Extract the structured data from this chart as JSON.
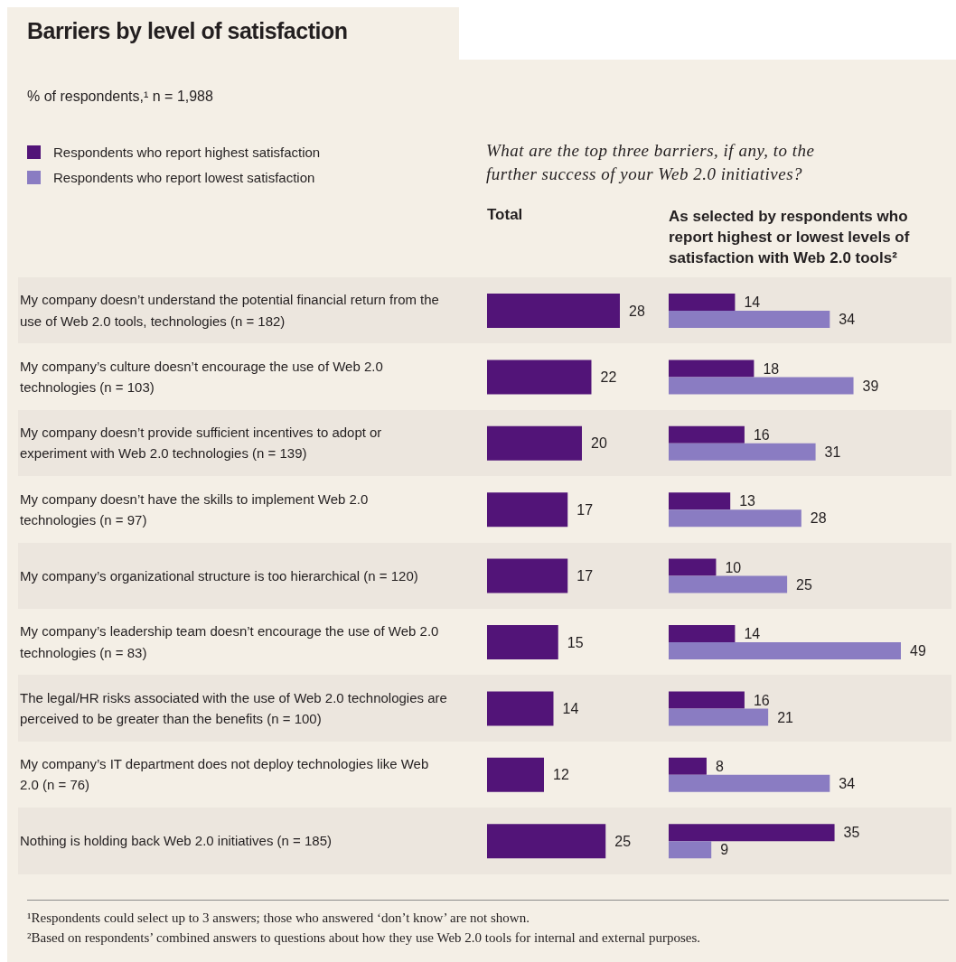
{
  "chart_data": [
    {
      "type": "bar",
      "orientation": "horizontal",
      "title": "Barriers by level of satisfaction",
      "subtitle": "% of respondents,¹ n = 1,988",
      "annotations": [
        "What are the top three barriers, if any, to the further success of your Web 2.0 initiatives?",
        "Total"
      ],
      "categories": [
        "My company doesn’t understand the potential financial return from the use of Web 2.0 tools, technologies (n = 182)",
        "My company’s culture doesn’t encourage the use of Web 2.0 technologies (n = 103)",
        "My company doesn’t provide sufficient incentives to adopt or experiment with Web 2.0 technologies (n = 139)",
        "My company doesn’t have the skills to implement Web 2.0 technologies (n = 97)",
        "My company’s organizational structure is too hierarchical (n = 120)",
        "My company’s leadership team doesn’t encourage the use of Web 2.0 technologies (n = 83)",
        "The legal/HR risks associated with the use of Web 2.0 technologies are perceived to be greater than the benefits (n = 100)",
        "My company’s IT department does not deploy technologies like Web 2.0 (n = 76)",
        "Nothing is holding back Web 2.0 initiatives (n = 185)"
      ],
      "values": [
        28,
        22,
        20,
        17,
        17,
        15,
        14,
        12,
        25
      ],
      "color": "#521478",
      "data_labels": true,
      "tick_labels": "y"
    },
    {
      "type": "bar",
      "orientation": "horizontal",
      "title": "As selected by respondents who report highest or lowest levels of satisfaction with Web 2.0 tools²",
      "categories": [
        null,
        null,
        null,
        null,
        null,
        null,
        null,
        null,
        null
      ],
      "series": [
        {
          "name": "Respondents who report highest satisfaction",
          "color": "#521478",
          "values": [
            14,
            18,
            16,
            13,
            10,
            14,
            16,
            8,
            35
          ]
        },
        {
          "name": "Respondents who report lowest satisfaction",
          "color": "#8a7cc2",
          "values": [
            34,
            39,
            31,
            28,
            25,
            49,
            21,
            34,
            9
          ]
        }
      ],
      "data_labels": true,
      "tick_labels": false,
      "legend": "top left",
      "annotations": [
        "¹Respondents could select up to 3 answers; those who answered ‘don’t know’ are not shown.",
        "²Based on respondents’ combined answers to questions about how they use Web 2.0 tools for internal and external purposes."
      ]
    }
  ]
}
